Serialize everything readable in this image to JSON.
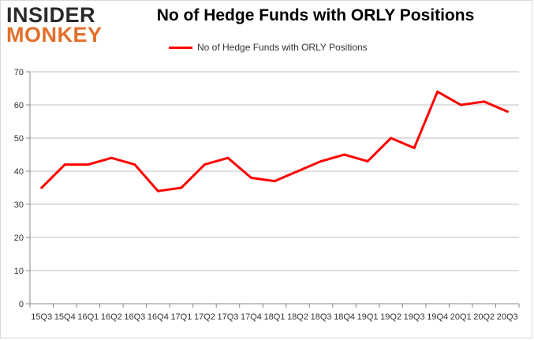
{
  "logo": {
    "line1": "INSIDER",
    "line2": "MONKEY"
  },
  "chart_data": {
    "type": "line",
    "title": "No of Hedge Funds with ORLY Positions",
    "xlabel": "",
    "ylabel": "",
    "categories": [
      "15Q3",
      "15Q4",
      "16Q1",
      "16Q2",
      "16Q3",
      "16Q4",
      "17Q1",
      "17Q2",
      "17Q3",
      "17Q4",
      "18Q1",
      "18Q2",
      "18Q3",
      "18Q4",
      "19Q1",
      "19Q2",
      "19Q3",
      "19Q4",
      "20Q1",
      "20Q2",
      "20Q3"
    ],
    "series": [
      {
        "name": "No of Hedge Funds with ORLY Positions",
        "values": [
          35,
          42,
          42,
          44,
          42,
          34,
          35,
          42,
          44,
          38,
          37,
          40,
          43,
          45,
          43,
          50,
          47,
          64,
          60,
          61,
          58
        ]
      }
    ],
    "ylim": [
      0,
      70
    ],
    "yticks": [
      0,
      10,
      20,
      30,
      40,
      50,
      60,
      70
    ],
    "grid": true,
    "legend_position": "top-center",
    "line_color": "#ff0000"
  }
}
